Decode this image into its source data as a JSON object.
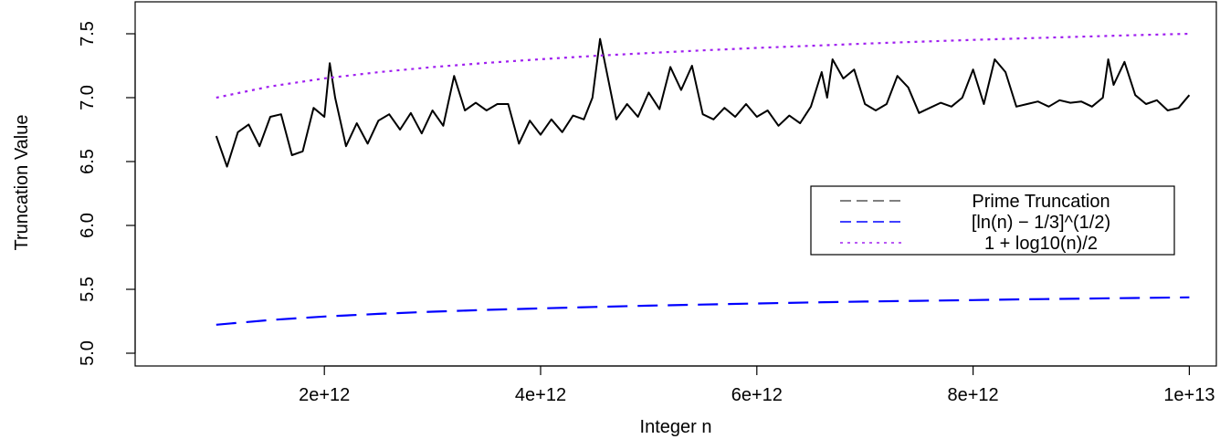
{
  "chart_data": {
    "type": "line",
    "title": "",
    "xlabel": "Integer n",
    "ylabel": "Truncation Value",
    "xlim": [
      250000000000.0,
      10250000000000.0
    ],
    "ylim": [
      4.9,
      7.75
    ],
    "x_ticks": [
      2000000000000.0,
      4000000000000.0,
      6000000000000.0,
      8000000000000.0,
      10000000000000.0
    ],
    "x_tick_labels": [
      "2e+12",
      "4e+12",
      "6e+12",
      "8e+12",
      "1e+13"
    ],
    "y_ticks": [
      5.0,
      5.5,
      6.0,
      6.5,
      7.0,
      7.5
    ],
    "y_tick_labels": [
      "5.0",
      "5.5",
      "6.0",
      "6.5",
      "7.0",
      "7.5"
    ],
    "grid": false,
    "legend_position": "right",
    "series": [
      {
        "name": "Prime Truncation",
        "color": "#000000",
        "dash": "solid",
        "x": [
          1000000000000.0,
          1100000000000.0,
          1200000000000.0,
          1300000000000.0,
          1400000000000.0,
          1500000000000.0,
          1600000000000.0,
          1700000000000.0,
          1800000000000.0,
          1900000000000.0,
          2000000000000.0,
          2050000000000.0,
          2100000000000.0,
          2200000000000.0,
          2300000000000.0,
          2400000000000.0,
          2500000000000.0,
          2600000000000.0,
          2700000000000.0,
          2800000000000.0,
          2900000000000.0,
          3000000000000.0,
          3100000000000.0,
          3200000000000.0,
          3300000000000.0,
          3400000000000.0,
          3500000000000.0,
          3600000000000.0,
          3700000000000.0,
          3800000000000.0,
          3900000000000.0,
          4000000000000.0,
          4100000000000.0,
          4200000000000.0,
          4300000000000.0,
          4400000000000.0,
          4480000000000.0,
          4550000000000.0,
          4700000000000.0,
          4800000000000.0,
          4900000000000.0,
          5000000000000.0,
          5100000000000.0,
          5200000000000.0,
          5300000000000.0,
          5400000000000.0,
          5500000000000.0,
          5600000000000.0,
          5700000000000.0,
          5800000000000.0,
          5900000000000.0,
          6000000000000.0,
          6100000000000.0,
          6200000000000.0,
          6300000000000.0,
          6400000000000.0,
          6500000000000.0,
          6600000000000.0,
          6650000000000.0,
          6700000000000.0,
          6800000000000.0,
          6900000000000.0,
          7000000000000.0,
          7100000000000.0,
          7200000000000.0,
          7300000000000.0,
          7400000000000.0,
          7500000000000.0,
          7600000000000.0,
          7700000000000.0,
          7800000000000.0,
          7900000000000.0,
          8000000000000.0,
          8100000000000.0,
          8200000000000.0,
          8300000000000.0,
          8400000000000.0,
          8500000000000.0,
          8600000000000.0,
          8700000000000.0,
          8800000000000.0,
          8900000000000.0,
          9000000000000.0,
          9100000000000.0,
          9200000000000.0,
          9250000000000.0,
          9300000000000.0,
          9400000000000.0,
          9500000000000.0,
          9600000000000.0,
          9700000000000.0,
          9800000000000.0,
          9900000000000.0,
          10000000000000.0
        ],
        "y": [
          6.7,
          6.46,
          6.73,
          6.79,
          6.62,
          6.85,
          6.87,
          6.55,
          6.58,
          6.92,
          6.85,
          7.27,
          7.0,
          6.62,
          6.8,
          6.64,
          6.82,
          6.87,
          6.75,
          6.88,
          6.72,
          6.9,
          6.78,
          7.17,
          6.9,
          6.96,
          6.9,
          6.95,
          6.95,
          6.64,
          6.82,
          6.71,
          6.83,
          6.73,
          6.86,
          6.83,
          7.0,
          7.46,
          6.83,
          6.95,
          6.85,
          7.04,
          6.91,
          7.24,
          7.06,
          7.25,
          6.87,
          6.83,
          6.92,
          6.85,
          6.95,
          6.85,
          6.9,
          6.78,
          6.86,
          6.8,
          6.93,
          7.2,
          7.0,
          7.3,
          7.15,
          7.22,
          6.95,
          6.9,
          6.95,
          7.17,
          7.08,
          6.88,
          6.92,
          6.96,
          6.93,
          7.0,
          7.22,
          6.95,
          7.3,
          7.2,
          6.93,
          6.95,
          6.97,
          6.93,
          6.98,
          6.96,
          6.97,
          6.93,
          7.0,
          7.3,
          7.1,
          7.28,
          7.02,
          6.95,
          6.98,
          6.9,
          6.92,
          7.02
        ]
      },
      {
        "name": "[ln(n) − 1/3]^(1/2)",
        "color": "#0000ff",
        "dash": "long-dash",
        "x": [
          1000000000000.0,
          1500000000000.0,
          2000000000000.0,
          2500000000000.0,
          3000000000000.0,
          3500000000000.0,
          4000000000000.0,
          4500000000000.0,
          5000000000000.0,
          5500000000000.0,
          6000000000000.0,
          6500000000000.0,
          7000000000000.0,
          7500000000000.0,
          8000000000000.0,
          8500000000000.0,
          9000000000000.0,
          9500000000000.0,
          10000000000000.0
        ],
        "y": [
          5.223,
          5.26,
          5.287,
          5.308,
          5.325,
          5.339,
          5.351,
          5.362,
          5.372,
          5.381,
          5.389,
          5.397,
          5.404,
          5.41,
          5.416,
          5.422,
          5.427,
          5.432,
          5.437
        ]
      },
      {
        "name": "1 + log10(n)/2",
        "color": "#a020f0",
        "dash": "dotted",
        "x": [
          1000000000000.0,
          1500000000000.0,
          2000000000000.0,
          2500000000000.0,
          3000000000000.0,
          3500000000000.0,
          4000000000000.0,
          4500000000000.0,
          5000000000000.0,
          5500000000000.0,
          6000000000000.0,
          6500000000000.0,
          7000000000000.0,
          7500000000000.0,
          8000000000000.0,
          8500000000000.0,
          9000000000000.0,
          9500000000000.0,
          10000000000000.0
        ],
        "y": [
          7.0,
          7.088,
          7.151,
          7.199,
          7.239,
          7.272,
          7.301,
          7.327,
          7.349,
          7.37,
          7.389,
          7.406,
          7.423,
          7.438,
          7.452,
          7.465,
          7.477,
          7.489,
          7.5
        ]
      }
    ]
  }
}
